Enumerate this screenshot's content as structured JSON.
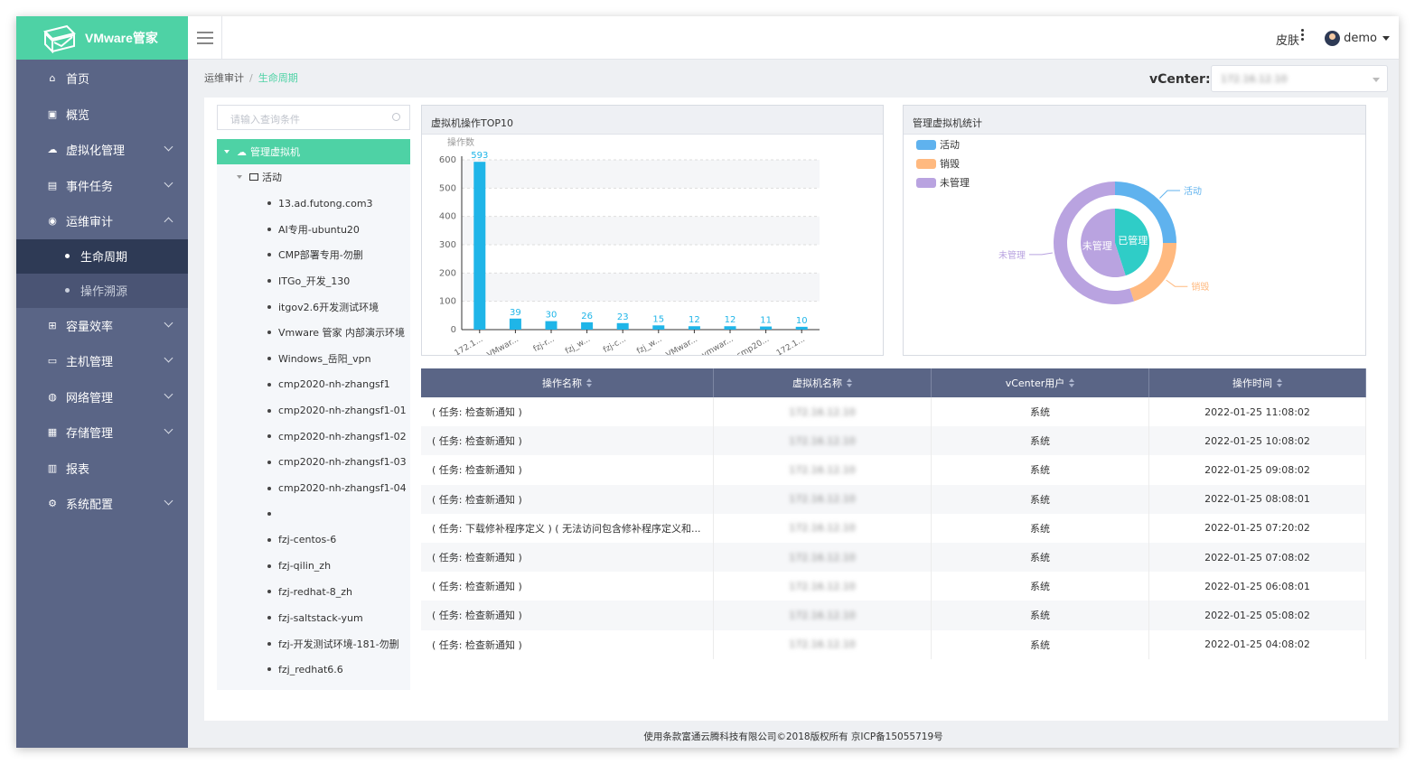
{
  "app": {
    "name": "VMware管家"
  },
  "header": {
    "skin_label": "皮肤",
    "user_name": "demo"
  },
  "sidebar": {
    "items": [
      {
        "label": "首页",
        "icon": "home-icon"
      },
      {
        "label": "概览",
        "icon": "monitor-icon"
      },
      {
        "label": "虚拟化管理",
        "icon": "cloud-icon"
      },
      {
        "label": "事件任务",
        "icon": "calendar-icon"
      },
      {
        "label": "运维审计",
        "icon": "globe-icon"
      },
      {
        "label": "容量效率",
        "icon": "chart-icon"
      },
      {
        "label": "主机管理",
        "icon": "desktop-icon"
      },
      {
        "label": "网络管理",
        "icon": "network-icon"
      },
      {
        "label": "存储管理",
        "icon": "storage-icon"
      },
      {
        "label": "报表",
        "icon": "report-icon"
      },
      {
        "label": "系统配置",
        "icon": "gear-icon"
      }
    ],
    "sub_items": [
      {
        "label": "生命周期"
      },
      {
        "label": "操作溯源"
      }
    ]
  },
  "breadcrumb": {
    "parent": "运维审计",
    "sep": "/",
    "current": "生命周期"
  },
  "vcenter": {
    "label": "vCenter:",
    "value": "172.16.12.10"
  },
  "search": {
    "placeholder": "请输入查询条件"
  },
  "tree": {
    "root": "管理虚拟机",
    "group": "活动",
    "leaves": [
      "13.ad.futong.com3",
      "AI专用-ubuntu20",
      "CMP部署专用-勿删",
      "ITGo_开发_130",
      "itgov2.6开发测试环境",
      "Vmware 管家 内部演示环境",
      "Windows_岳阳_vpn",
      "cmp2020-nh-zhangsf1",
      "cmp2020-nh-zhangsf1-01",
      "cmp2020-nh-zhangsf1-02",
      "cmp2020-nh-zhangsf1-03",
      "cmp2020-nh-zhangsf1-04",
      "",
      "fzj-centos-6",
      "fzj-qilin_zh",
      "fzj-redhat-8_zh",
      "fzj-saltstack-yum",
      "fzj-开发测试环境-181-勿删",
      "fzj_redhat6.6"
    ]
  },
  "bar_panel": {
    "title": "虚拟机操作TOP10"
  },
  "pie_panel": {
    "title": "管理虚拟机统计"
  },
  "chart_data": [
    {
      "type": "bar",
      "title": "虚拟机操作TOP10",
      "ylabel": "操作数",
      "categories": [
        "172.1...",
        "VMwar...",
        "fzj-r...",
        "fzj_w...",
        "fzj-c...",
        "fzj_w...",
        "VMwar...",
        "vmwar...",
        "cmp20...",
        "172.1..."
      ],
      "values": [
        593,
        39,
        30,
        26,
        23,
        15,
        12,
        12,
        11,
        10
      ],
      "ylim": [
        0,
        600
      ],
      "yticks": [
        0,
        100,
        200,
        300,
        400,
        500,
        600
      ],
      "grid": true,
      "color": "#1fb5e8"
    },
    {
      "type": "pie",
      "title": "管理虚拟机统计",
      "legend": [
        "活动",
        "销毁",
        "未管理"
      ],
      "legend_position": "top-left",
      "outer": [
        {
          "name": "活动",
          "value": 25,
          "color": "#5fb2ee"
        },
        {
          "name": "销毁",
          "value": 20,
          "color": "#ffb97f"
        },
        {
          "name": "未管理",
          "value": 55,
          "color": "#b9a3e0"
        }
      ],
      "inner": [
        {
          "name": "已管理",
          "value": 45,
          "color": "#2fcdc7"
        },
        {
          "name": "未管理",
          "value": 55,
          "color": "#b9a3e0"
        }
      ]
    }
  ],
  "table": {
    "headers": [
      "操作名称",
      "虚拟机名称",
      "vCenter用户",
      "操作时间"
    ],
    "rows": [
      [
        "( 任务: 检查新通知 )",
        "172.16.12.10",
        "系统",
        "2022-01-25 11:08:02"
      ],
      [
        "( 任务: 检查新通知 )",
        "172.16.12.10",
        "系统",
        "2022-01-25 10:08:02"
      ],
      [
        "( 任务: 检查新通知 )",
        "172.16.12.10",
        "系统",
        "2022-01-25 09:08:02"
      ],
      [
        "( 任务: 检查新通知 )",
        "172.16.12.10",
        "系统",
        "2022-01-25 08:08:01"
      ],
      [
        "( 任务: 下载修补程序定义 ) ( 无法访问包含修补程序定义和...",
        "172.16.12.10",
        "系统",
        "2022-01-25 07:20:02"
      ],
      [
        "( 任务: 检查新通知 )",
        "172.16.12.10",
        "系统",
        "2022-01-25 07:08:02"
      ],
      [
        "( 任务: 检查新通知 )",
        "172.16.12.10",
        "系统",
        "2022-01-25 06:08:01"
      ],
      [
        "( 任务: 检查新通知 )",
        "172.16.12.10",
        "系统",
        "2022-01-25 05:08:02"
      ],
      [
        "( 任务: 检查新通知 )",
        "172.16.12.10",
        "系统",
        "2022-01-25 04:08:02"
      ]
    ]
  },
  "footer": {
    "text": "使用条款富通云腾科技有限公司©2018版权所有 京ICP备15055719号"
  },
  "colors": {
    "brand": "#4ed2a5",
    "sidebar": "#5a6586",
    "sidebar_active": "#2e3a55"
  }
}
